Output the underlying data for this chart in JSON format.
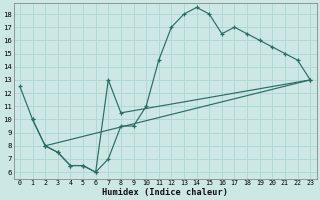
{
  "xlabel": "Humidex (Indice chaleur)",
  "bg_color": "#cde8e4",
  "grid_color": "#b0d8d4",
  "line_color": "#2d6b65",
  "xlim": [
    -0.5,
    23.5
  ],
  "ylim": [
    5.5,
    18.8
  ],
  "xticks": [
    0,
    1,
    2,
    3,
    4,
    5,
    6,
    7,
    8,
    9,
    10,
    11,
    12,
    13,
    14,
    15,
    16,
    17,
    18,
    19,
    20,
    21,
    22,
    23
  ],
  "yticks": [
    6,
    7,
    8,
    9,
    10,
    11,
    12,
    13,
    14,
    15,
    16,
    17,
    18
  ],
  "curve_x": [
    0,
    1,
    2,
    3,
    4,
    5,
    6,
    7,
    8,
    9,
    10,
    11,
    12,
    13,
    14,
    15,
    16,
    17,
    18,
    19,
    20,
    21,
    22,
    23
  ],
  "curve_y": [
    12.5,
    10.0,
    8.0,
    7.5,
    6.5,
    6.5,
    6.0,
    7.0,
    9.5,
    9.5,
    11.0,
    14.5,
    17.0,
    18.0,
    18.5,
    18.0,
    16.5,
    17.0,
    16.5,
    16.0,
    15.5,
    15.0,
    14.5,
    13.0
  ],
  "line2_x": [
    1,
    2,
    3,
    4,
    5,
    6,
    7,
    8,
    23
  ],
  "line2_y": [
    10.0,
    8.0,
    7.5,
    6.5,
    6.5,
    6.0,
    13.0,
    10.5,
    13.0
  ],
  "line3_x": [
    2,
    23
  ],
  "line3_y": [
    8.0,
    13.0
  ]
}
